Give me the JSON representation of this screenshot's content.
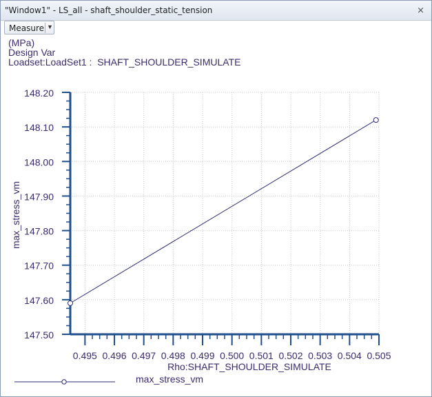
{
  "window": {
    "title": "\"Window1\" - LS_all - shaft_shoulder_static_tension",
    "close_icon": "close-icon"
  },
  "toolbar": {
    "measure_label": "Measure",
    "dropdown_icon": "chevron-down-icon"
  },
  "header": {
    "units": "(MPa)",
    "design_var": "Design Var",
    "loadset": "Loadset:LoadSet1 :  SHAFT_SHOULDER_SIMULATE"
  },
  "colors": {
    "axis": "#1f4e8c",
    "series": "#2b2a73",
    "text": "#3c2a6e",
    "grid": "#c8c8c8"
  },
  "chart_data": {
    "type": "line",
    "xlabel": "Rho:SHAFT_SHOULDER_SIMULATE",
    "ylabel": "max_stress_vm",
    "xlim": [
      0.4945,
      0.505
    ],
    "ylim": [
      147.5,
      148.2
    ],
    "x_ticks": [
      0.495,
      0.496,
      0.497,
      0.498,
      0.499,
      0.5,
      0.501,
      0.502,
      0.503,
      0.504,
      0.505
    ],
    "x_tick_labels": [
      "0.495",
      "0.496",
      "0.497",
      "0.498",
      "0.499",
      "0.500",
      "0.501",
      "0.502",
      "0.503",
      "0.504",
      "0.505"
    ],
    "y_ticks": [
      147.5,
      147.6,
      147.7,
      147.8,
      147.9,
      148.0,
      148.1,
      148.2
    ],
    "y_tick_labels": [
      "147.50",
      "147.60",
      "147.70",
      "147.80",
      "147.90",
      "148.00",
      "148.10",
      "148.20"
    ],
    "grid": true,
    "legend_position": "bottom-left",
    "series": [
      {
        "name": "max_stress_vm",
        "marker": "circle",
        "x": [
          0.4945,
          0.5049
        ],
        "y": [
          147.59,
          148.12
        ]
      }
    ]
  }
}
